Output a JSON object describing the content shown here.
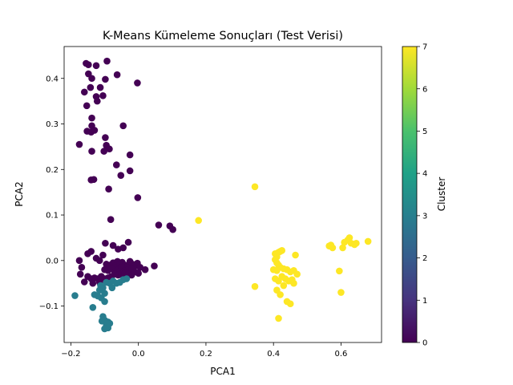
{
  "chart_data": {
    "type": "scatter",
    "title": "K-Means Kümeleme Sonuçları (Test Verisi)",
    "xlabel": "PCA1",
    "ylabel": "PCA2",
    "xlim": [
      -0.22,
      0.72
    ],
    "ylim": [
      -0.18,
      0.47
    ],
    "x_ticks": [
      -0.2,
      0.0,
      0.2,
      0.4,
      0.6
    ],
    "x_tick_labels": [
      "−0.2",
      "0.0",
      "0.2",
      "0.4",
      "0.6"
    ],
    "y_ticks": [
      -0.1,
      0.0,
      0.1,
      0.2,
      0.3,
      0.4
    ],
    "y_tick_labels": [
      "−0.1",
      "0.0",
      "0.1",
      "0.2",
      "0.3",
      "0.4"
    ],
    "grid": false,
    "colormap": "viridis",
    "colorbar": {
      "label": "Cluster",
      "range": [
        0,
        7
      ],
      "ticks": [
        "0",
        "1",
        "2",
        "3",
        "4",
        "5",
        "6",
        "7"
      ]
    },
    "colors": {
      "cluster_0": "#440154",
      "cluster_3": "#287d8e",
      "cluster_7": "#fde725"
    },
    "series": [
      {
        "cluster": 0,
        "points": [
          [
            -0.155,
            0.433
          ],
          [
            -0.148,
            0.43
          ],
          [
            -0.125,
            0.428
          ],
          [
            -0.093,
            0.438
          ],
          [
            -0.063,
            0.408
          ],
          [
            -0.148,
            0.41
          ],
          [
            -0.138,
            0.4
          ],
          [
            -0.098,
            0.398
          ],
          [
            -0.003,
            0.39
          ],
          [
            -0.142,
            0.38
          ],
          [
            -0.113,
            0.38
          ],
          [
            -0.16,
            0.37
          ],
          [
            -0.125,
            0.36
          ],
          [
            -0.122,
            0.35
          ],
          [
            -0.105,
            0.362
          ],
          [
            -0.153,
            0.34
          ],
          [
            -0.138,
            0.313
          ],
          [
            -0.138,
            0.296
          ],
          [
            -0.045,
            0.296
          ],
          [
            -0.152,
            0.284
          ],
          [
            -0.14,
            0.282
          ],
          [
            -0.13,
            0.286
          ],
          [
            -0.098,
            0.27
          ],
          [
            -0.095,
            0.253
          ],
          [
            -0.086,
            0.245
          ],
          [
            -0.102,
            0.24
          ],
          [
            -0.138,
            0.24
          ],
          [
            -0.025,
            0.232
          ],
          [
            -0.065,
            0.21
          ],
          [
            -0.052,
            0.187
          ],
          [
            -0.025,
            0.197
          ],
          [
            -0.14,
            0.177
          ],
          [
            -0.132,
            0.178
          ],
          [
            -0.175,
            0.255
          ],
          [
            -0.088,
            0.157
          ],
          [
            -0.002,
            0.138
          ],
          [
            -0.082,
            0.09
          ],
          [
            0.06,
            0.078
          ],
          [
            0.093,
            0.076
          ],
          [
            0.102,
            0.068
          ],
          [
            -0.098,
            0.038
          ],
          [
            -0.075,
            0.033
          ],
          [
            -0.03,
            0.04
          ],
          [
            -0.06,
            0.025
          ],
          [
            -0.045,
            0.028
          ],
          [
            -0.15,
            0.015
          ],
          [
            -0.14,
            0.02
          ],
          [
            -0.125,
            0.005
          ],
          [
            -0.115,
            0.0
          ],
          [
            -0.105,
            0.012
          ],
          [
            -0.175,
            0.0
          ],
          [
            -0.168,
            -0.015
          ],
          [
            -0.095,
            -0.008
          ],
          [
            -0.085,
            -0.01
          ],
          [
            -0.075,
            -0.005
          ],
          [
            -0.068,
            -0.012
          ],
          [
            -0.062,
            -0.002
          ],
          [
            -0.055,
            -0.007
          ],
          [
            -0.048,
            -0.004
          ],
          [
            -0.04,
            -0.01
          ],
          [
            -0.032,
            -0.012
          ],
          [
            -0.025,
            -0.002
          ],
          [
            -0.018,
            -0.008
          ],
          [
            -0.01,
            -0.012
          ],
          [
            -0.003,
            -0.006
          ],
          [
            0.005,
            -0.015
          ],
          [
            0.02,
            -0.02
          ],
          [
            0.047,
            -0.012
          ],
          [
            -0.1,
            -0.02
          ],
          [
            -0.09,
            -0.022
          ],
          [
            -0.08,
            -0.018
          ],
          [
            -0.07,
            -0.025
          ],
          [
            -0.06,
            -0.02
          ],
          [
            -0.05,
            -0.015
          ],
          [
            -0.04,
            -0.022
          ],
          [
            -0.03,
            -0.02
          ],
          [
            -0.02,
            -0.018
          ],
          [
            -0.01,
            -0.025
          ],
          [
            0.0,
            -0.028
          ],
          [
            -0.172,
            -0.03
          ],
          [
            -0.15,
            -0.035
          ],
          [
            -0.14,
            -0.04
          ],
          [
            -0.13,
            -0.038
          ],
          [
            -0.12,
            -0.04
          ],
          [
            -0.11,
            -0.035
          ],
          [
            -0.1,
            -0.04
          ],
          [
            -0.09,
            -0.038
          ],
          [
            -0.08,
            -0.035
          ],
          [
            -0.07,
            -0.03
          ],
          [
            -0.06,
            -0.032
          ],
          [
            -0.05,
            -0.03
          ],
          [
            -0.04,
            -0.028
          ],
          [
            -0.03,
            -0.03
          ],
          [
            -0.02,
            -0.032
          ],
          [
            -0.135,
            -0.05
          ],
          [
            -0.115,
            -0.048
          ],
          [
            -0.16,
            -0.047
          ]
        ]
      },
      {
        "cluster": 3,
        "points": [
          [
            -0.095,
            -0.048
          ],
          [
            -0.085,
            -0.05
          ],
          [
            -0.075,
            -0.045
          ],
          [
            -0.065,
            -0.05
          ],
          [
            -0.055,
            -0.048
          ],
          [
            -0.045,
            -0.042
          ],
          [
            -0.035,
            -0.04
          ],
          [
            -0.105,
            -0.06
          ],
          [
            -0.115,
            -0.065
          ],
          [
            -0.13,
            -0.075
          ],
          [
            -0.12,
            -0.078
          ],
          [
            -0.11,
            -0.082
          ],
          [
            -0.1,
            -0.072
          ],
          [
            -0.188,
            -0.077
          ],
          [
            -0.1,
            -0.09
          ],
          [
            -0.135,
            -0.103
          ],
          [
            -0.105,
            -0.123
          ],
          [
            -0.1,
            -0.131
          ],
          [
            -0.09,
            -0.135
          ],
          [
            -0.108,
            -0.133
          ],
          [
            -0.095,
            -0.143
          ],
          [
            -0.085,
            -0.138
          ],
          [
            -0.1,
            -0.15
          ],
          [
            -0.09,
            -0.148
          ],
          [
            -0.112,
            -0.055
          ],
          [
            -0.078,
            -0.06
          ]
        ]
      },
      {
        "cluster": 7,
        "points": [
          [
            0.345,
            0.162
          ],
          [
            0.178,
            0.088
          ],
          [
            0.345,
            -0.057
          ],
          [
            0.405,
            0.015
          ],
          [
            0.41,
            0.008
          ],
          [
            0.415,
            0.018
          ],
          [
            0.42,
            0.02
          ],
          [
            0.425,
            0.022
          ],
          [
            0.405,
            0.002
          ],
          [
            0.41,
            -0.005
          ],
          [
            0.415,
            -0.01
          ],
          [
            0.42,
            -0.015
          ],
          [
            0.4,
            -0.02
          ],
          [
            0.41,
            -0.022
          ],
          [
            0.43,
            -0.018
          ],
          [
            0.44,
            -0.02
          ],
          [
            0.45,
            -0.025
          ],
          [
            0.46,
            -0.022
          ],
          [
            0.47,
            -0.03
          ],
          [
            0.465,
            0.012
          ],
          [
            0.425,
            -0.035
          ],
          [
            0.435,
            -0.04
          ],
          [
            0.445,
            -0.045
          ],
          [
            0.455,
            -0.042
          ],
          [
            0.405,
            -0.04
          ],
          [
            0.415,
            -0.045
          ],
          [
            0.46,
            -0.05
          ],
          [
            0.43,
            -0.055
          ],
          [
            0.41,
            -0.065
          ],
          [
            0.42,
            -0.075
          ],
          [
            0.44,
            -0.09
          ],
          [
            0.45,
            -0.095
          ],
          [
            0.415,
            -0.127
          ],
          [
            0.565,
            0.032
          ],
          [
            0.57,
            0.034
          ],
          [
            0.575,
            0.028
          ],
          [
            0.605,
            0.028
          ],
          [
            0.61,
            0.04
          ],
          [
            0.62,
            0.045
          ],
          [
            0.625,
            0.05
          ],
          [
            0.63,
            0.038
          ],
          [
            0.64,
            0.035
          ],
          [
            0.645,
            0.038
          ],
          [
            0.68,
            0.042
          ],
          [
            0.595,
            -0.023
          ],
          [
            0.6,
            -0.07
          ]
        ]
      }
    ]
  }
}
